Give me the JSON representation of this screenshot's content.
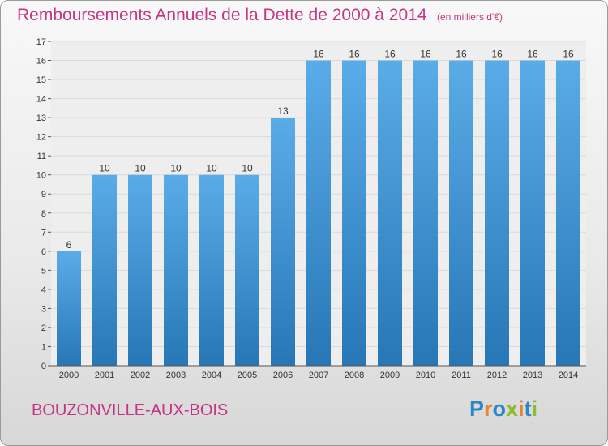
{
  "header": {
    "title": "Remboursements Annuels de la Dette de 2000 à 2014",
    "subtitle": "(en milliers d'€)"
  },
  "footer": {
    "place": "BOUZONVILLE-AUX-BOIS",
    "logo_text": "Proxiti",
    "logo_colors": [
      "#2b87c6",
      "#e8842b",
      "#2b87c6",
      "#8dbd2f",
      "#e8842b",
      "#2b87c6",
      "#8dbd2f"
    ]
  },
  "colors": {
    "bar_top": "#5aace8",
    "bar_bottom": "#2777b6",
    "title": "#c43583"
  },
  "chart_data": {
    "type": "bar",
    "title": "Remboursements Annuels de la Dette de 2000 à 2014",
    "xlabel": "",
    "ylabel": "",
    "ylim": [
      0,
      17
    ],
    "yticks": [
      0,
      1,
      2,
      3,
      4,
      5,
      6,
      7,
      8,
      9,
      10,
      11,
      12,
      13,
      14,
      15,
      16,
      17
    ],
    "grid": true,
    "categories": [
      "2000",
      "2001",
      "2002",
      "2003",
      "2004",
      "2005",
      "2006",
      "2007",
      "2008",
      "2009",
      "2010",
      "2011",
      "2012",
      "2013",
      "2014"
    ],
    "values": [
      6,
      10,
      10,
      10,
      10,
      10,
      13,
      16,
      16,
      16,
      16,
      16,
      16,
      16,
      16
    ],
    "value_labels": [
      "6",
      "10",
      "10",
      "10",
      "10",
      "10",
      "13",
      "16",
      "16",
      "16",
      "16",
      "16",
      "16",
      "16",
      "16"
    ]
  }
}
